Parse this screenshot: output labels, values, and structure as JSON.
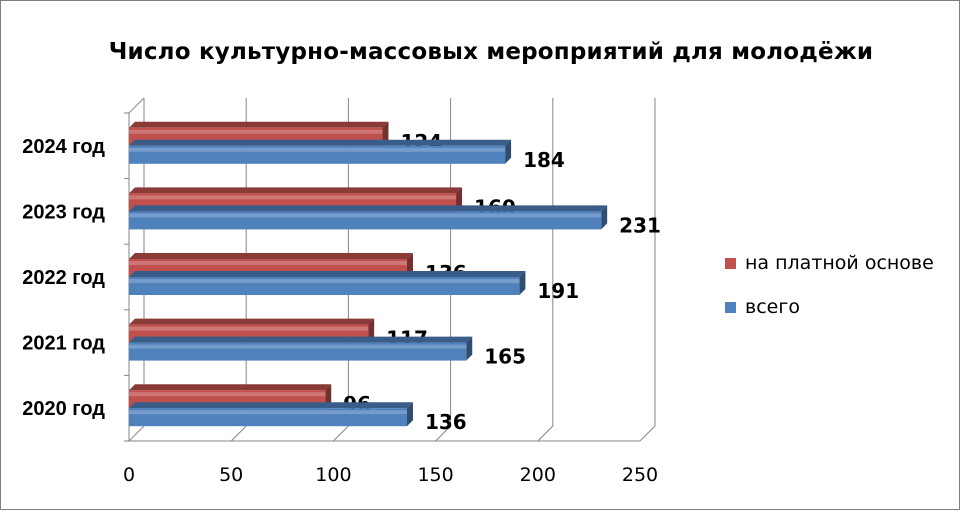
{
  "chart_data": {
    "type": "bar",
    "orientation": "horizontal",
    "title": "Число культурно-массовых мероприятий  для молодёжи",
    "categories": [
      "2020 год",
      "2021 год",
      "2022 год",
      "2023 год",
      "2024 год"
    ],
    "series": [
      {
        "name": "на платной основе",
        "values": [
          96,
          117,
          136,
          160,
          124
        ],
        "color": "#C0504D"
      },
      {
        "name": "всего",
        "values": [
          136,
          165,
          191,
          231,
          184
        ],
        "color": "#4F81BD"
      }
    ],
    "xlim": [
      0,
      250
    ],
    "xticks": [
      "0",
      "50",
      "100",
      "150",
      "200",
      "250"
    ],
    "grid": true,
    "legend": "right",
    "style": "3d-clustered"
  }
}
